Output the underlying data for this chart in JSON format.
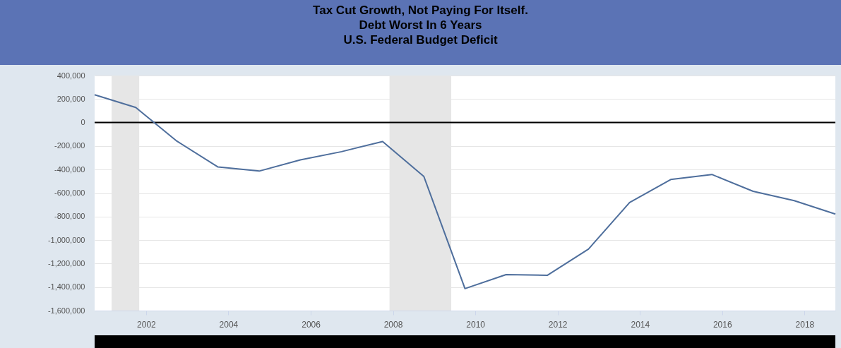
{
  "chart_data": {
    "type": "line",
    "title": "Tax Cut Growth, Not Paying For Itself.\nDebt Worst In 6 Years\nU.S. Federal Budget Deficit",
    "x": [
      "2000-10-01",
      "2001-10-01",
      "2002-10-01",
      "2003-10-01",
      "2004-10-01",
      "2005-10-01",
      "2006-10-01",
      "2007-10-01",
      "2008-10-01",
      "2009-10-01",
      "2010-10-01",
      "2011-10-01",
      "2012-10-01",
      "2013-10-01",
      "2014-10-01",
      "2015-10-01",
      "2016-10-01",
      "2017-10-01",
      "2018-10-01"
    ],
    "series": [
      {
        "color": "#4e6e9c",
        "values": [
          236000,
          128000,
          -158000,
          -378000,
          -413000,
          -318000,
          -248000,
          -161000,
          -459000,
          -1413000,
          -1294000,
          -1300000,
          -1077000,
          -680000,
          -485000,
          -442000,
          -585000,
          -665000,
          -779000
        ]
      }
    ],
    "xlim": [
      "2000-10-01",
      "2018-10-01"
    ],
    "xticks": [
      "2002",
      "2004",
      "2006",
      "2008",
      "2010",
      "2012",
      "2014",
      "2016",
      "2018"
    ],
    "ylim": [
      -1600000,
      400000
    ],
    "yticks": [
      {
        "value": -1600000,
        "label": "-1,600,000"
      },
      {
        "value": -1400000,
        "label": "-1,400,000"
      },
      {
        "value": -1200000,
        "label": "-1,200,000"
      },
      {
        "value": -1000000,
        "label": "-1,000,000"
      },
      {
        "value": -800000,
        "label": "-800,000"
      },
      {
        "value": -600000,
        "label": "-600,000"
      },
      {
        "value": -400000,
        "label": "-400,000"
      },
      {
        "value": -200000,
        "label": "-200,000"
      },
      {
        "value": 0,
        "label": "0"
      },
      {
        "value": 200000,
        "label": "200,000"
      },
      {
        "value": 400000,
        "label": "400,000"
      }
    ],
    "ref_lines": [
      {
        "axis": "y",
        "value": 0,
        "color": "#000000"
      }
    ],
    "bands": [
      {
        "axis": "x",
        "from": "2001-03-01",
        "to": "2001-11-01",
        "color": "#e6e6e6"
      },
      {
        "axis": "x",
        "from": "2007-12-01",
        "to": "2009-06-01",
        "color": "#e6e6e6"
      }
    ],
    "grid": "y"
  }
}
